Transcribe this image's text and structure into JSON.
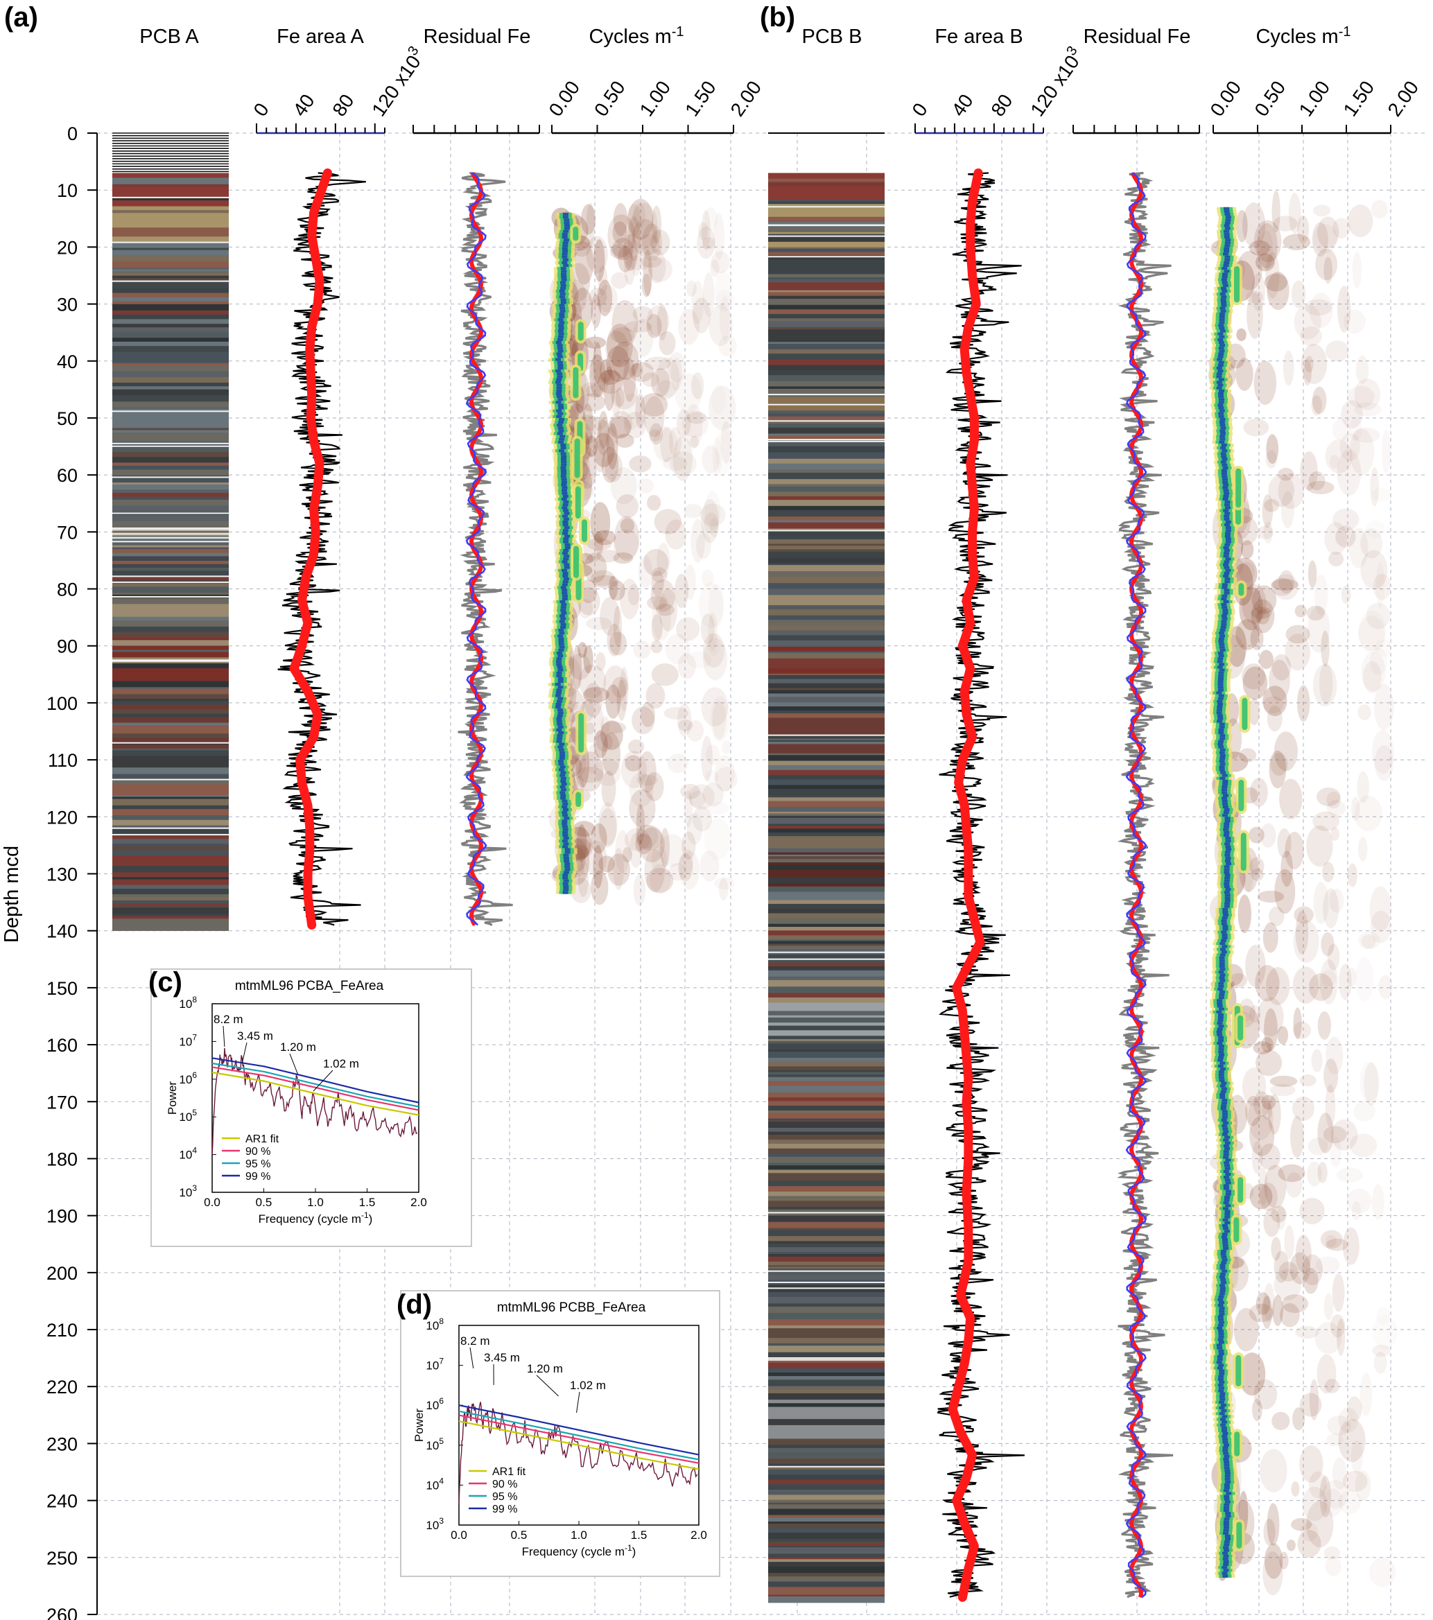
{
  "figure": {
    "panel_letters": {
      "a": "(a)",
      "b": "(b)",
      "c": "(c)",
      "d": "(d)"
    },
    "depth_axis_label": "Depth mcd"
  },
  "headers": {
    "pcb_a": "PCB A",
    "fe_area_a": "Fe area A",
    "residual_a": "Residual Fe",
    "cycles_a": "Cycles m",
    "pcb_b": "PCB B",
    "fe_area_b": "Fe area B",
    "residual_b": "Residual Fe",
    "cycles_b": "Cycles m",
    "cycles_sup": "-1"
  },
  "colors": {
    "raw_fe": "#000000",
    "residual_fe": "#7f7f7f",
    "smooth_trend": "#ff1a1a",
    "filtered_residual": "#3c3cff",
    "grid": "#9aa0b4",
    "ar1": "#c8c800",
    "ci90": "#e8336e",
    "ci95": "#1aa6b4",
    "ci99": "#1a2aa6",
    "spectrum": "#6b1a3c"
  },
  "chart_data": [
    {
      "id": "core_logs",
      "type": "line",
      "depth_axis": {
        "label": "Depth mcd",
        "range": [
          0,
          260
        ],
        "ticks": [
          0,
          10,
          20,
          30,
          40,
          50,
          60,
          70,
          80,
          90,
          100,
          110,
          120,
          130,
          140,
          150,
          160,
          170,
          180,
          190,
          200,
          210,
          220,
          230,
          240,
          250,
          260
        ]
      },
      "fe_area_axis": {
        "ticks": [
          "0",
          "40",
          "80",
          "120 x10"
        ],
        "exponent": "3",
        "range": [
          0,
          130
        ]
      },
      "cycles_axis": {
        "ticks": [
          "0.00",
          "0.50",
          "1.00",
          "1.50",
          "2.00"
        ],
        "range": [
          0,
          2
        ]
      },
      "grid": true,
      "pcb_a": {
        "depth_range": [
          0,
          139
        ]
      },
      "pcb_b": {
        "depth_range": [
          7,
          257
        ]
      },
      "fe_area_a": {
        "depth_range": [
          7,
          139
        ],
        "trend": [
          [
            7,
            72
          ],
          [
            10,
            66
          ],
          [
            14,
            58
          ],
          [
            18,
            56
          ],
          [
            22,
            60
          ],
          [
            26,
            64
          ],
          [
            30,
            62
          ],
          [
            34,
            56
          ],
          [
            38,
            54
          ],
          [
            42,
            55
          ],
          [
            46,
            56
          ],
          [
            50,
            55
          ],
          [
            54,
            58
          ],
          [
            58,
            64
          ],
          [
            62,
            62
          ],
          [
            66,
            58
          ],
          [
            70,
            60
          ],
          [
            74,
            58
          ],
          [
            78,
            50
          ],
          [
            82,
            46
          ],
          [
            86,
            52
          ],
          [
            90,
            46
          ],
          [
            94,
            38
          ],
          [
            98,
            52
          ],
          [
            102,
            62
          ],
          [
            106,
            58
          ],
          [
            110,
            44
          ],
          [
            114,
            46
          ],
          [
            118,
            52
          ],
          [
            122,
            54
          ],
          [
            126,
            54
          ],
          [
            130,
            52
          ],
          [
            134,
            52
          ],
          [
            139,
            56
          ]
        ]
      },
      "fe_area_b": {
        "depth_range": [
          7,
          257
        ],
        "trend": [
          [
            7,
            64
          ],
          [
            12,
            58
          ],
          [
            16,
            56
          ],
          [
            20,
            56
          ],
          [
            25,
            58
          ],
          [
            30,
            62
          ],
          [
            34,
            54
          ],
          [
            38,
            50
          ],
          [
            42,
            52
          ],
          [
            46,
            56
          ],
          [
            50,
            60
          ],
          [
            54,
            60
          ],
          [
            58,
            56
          ],
          [
            62,
            58
          ],
          [
            66,
            60
          ],
          [
            70,
            58
          ],
          [
            74,
            58
          ],
          [
            78,
            60
          ],
          [
            82,
            52
          ],
          [
            86,
            56
          ],
          [
            90,
            48
          ],
          [
            94,
            56
          ],
          [
            98,
            50
          ],
          [
            102,
            52
          ],
          [
            106,
            58
          ],
          [
            110,
            48
          ],
          [
            114,
            44
          ],
          [
            118,
            50
          ],
          [
            122,
            52
          ],
          [
            126,
            54
          ],
          [
            130,
            54
          ],
          [
            134,
            54
          ],
          [
            138,
            60
          ],
          [
            142,
            66
          ],
          [
            146,
            54
          ],
          [
            150,
            42
          ],
          [
            154,
            48
          ],
          [
            158,
            50
          ],
          [
            162,
            52
          ],
          [
            166,
            54
          ],
          [
            170,
            52
          ],
          [
            175,
            54
          ],
          [
            180,
            54
          ],
          [
            186,
            52
          ],
          [
            192,
            54
          ],
          [
            198,
            54
          ],
          [
            204,
            46
          ],
          [
            208,
            56
          ],
          [
            212,
            54
          ],
          [
            216,
            50
          ],
          [
            220,
            44
          ],
          [
            224,
            38
          ],
          [
            228,
            46
          ],
          [
            232,
            58
          ],
          [
            236,
            52
          ],
          [
            240,
            42
          ],
          [
            244,
            50
          ],
          [
            248,
            60
          ],
          [
            252,
            54
          ],
          [
            257,
            48
          ]
        ]
      },
      "wavelet_a": {
        "depth_range": [
          14,
          133
        ],
        "frequency_range": [
          0,
          2
        ]
      },
      "wavelet_b": {
        "depth_range": [
          13,
          253
        ],
        "frequency_range": [
          0,
          2
        ]
      }
    },
    {
      "id": "spectrum_a",
      "type": "line",
      "title": "mtmML96 PCBA_FeArea",
      "xlabel": "Frequency (cycle m",
      "xlabel_sup": "-1",
      "xlabel_end": ")",
      "ylabel": "Power",
      "xlim": [
        0,
        2
      ],
      "ylim_log10": [
        3,
        8
      ],
      "x_ticks": [
        "0.0",
        "0.5",
        "1.0",
        "1.5",
        "2.0"
      ],
      "y_ticks": [
        "3",
        "4",
        "5",
        "6",
        "7",
        "8"
      ],
      "y_tick_base": "10",
      "legend": [
        "AR1 fit",
        "90 %",
        "95 %",
        "99 %"
      ],
      "legend_position": "bottom-left",
      "annotations": [
        {
          "text": "8.2 m",
          "freq": 0.12
        },
        {
          "text": "3.45 m",
          "freq": 0.29
        },
        {
          "text": "1.20 m",
          "freq": 0.83
        },
        {
          "text": "1.02 m",
          "freq": 0.98
        }
      ],
      "series": [
        {
          "name": "AR1 fit",
          "log10": [
            [
              0,
              6.18
            ],
            [
              0.5,
              5.95
            ],
            [
              1.0,
              5.62
            ],
            [
              1.5,
              5.3
            ],
            [
              2.0,
              5.05
            ]
          ]
        },
        {
          "name": "90 %",
          "log10": [
            [
              0,
              6.32
            ],
            [
              0.5,
              6.1
            ],
            [
              1.0,
              5.78
            ],
            [
              1.5,
              5.45
            ],
            [
              2.0,
              5.18
            ]
          ]
        },
        {
          "name": "95 %",
          "log10": [
            [
              0,
              6.42
            ],
            [
              0.5,
              6.2
            ],
            [
              1.0,
              5.87
            ],
            [
              1.5,
              5.54
            ],
            [
              2.0,
              5.27
            ]
          ]
        },
        {
          "name": "99 %",
          "log10": [
            [
              0,
              6.56
            ],
            [
              0.5,
              6.34
            ],
            [
              1.0,
              6.01
            ],
            [
              1.5,
              5.67
            ],
            [
              2.0,
              5.38
            ]
          ]
        }
      ],
      "spectrum_log10": [
        [
          0.0,
          4.0
        ],
        [
          0.02,
          5.2
        ],
        [
          0.04,
          6.0
        ],
        [
          0.06,
          6.3
        ],
        [
          0.08,
          6.55
        ],
        [
          0.1,
          6.3
        ],
        [
          0.12,
          6.7
        ],
        [
          0.15,
          6.4
        ],
        [
          0.18,
          6.6
        ],
        [
          0.2,
          6.2
        ],
        [
          0.23,
          6.55
        ],
        [
          0.26,
          6.1
        ],
        [
          0.29,
          6.6
        ],
        [
          0.32,
          5.9
        ],
        [
          0.35,
          6.2
        ],
        [
          0.4,
          5.7
        ],
        [
          0.45,
          6.0
        ],
        [
          0.5,
          5.5
        ],
        [
          0.55,
          5.9
        ],
        [
          0.6,
          5.3
        ],
        [
          0.65,
          5.8
        ],
        [
          0.7,
          5.2
        ],
        [
          0.75,
          5.5
        ],
        [
          0.8,
          5.9
        ],
        [
          0.83,
          6.0
        ],
        [
          0.87,
          5.1
        ],
        [
          0.9,
          5.6
        ],
        [
          0.95,
          5.2
        ],
        [
          0.98,
          5.7
        ],
        [
          1.02,
          4.9
        ],
        [
          1.08,
          5.4
        ],
        [
          1.12,
          4.8
        ],
        [
          1.18,
          5.3
        ],
        [
          1.22,
          5.5
        ],
        [
          1.28,
          4.9
        ],
        [
          1.34,
          5.2
        ],
        [
          1.4,
          4.7
        ],
        [
          1.45,
          5.1
        ],
        [
          1.5,
          4.8
        ],
        [
          1.56,
          5.1
        ],
        [
          1.6,
          4.6
        ],
        [
          1.66,
          5.0
        ],
        [
          1.72,
          4.7
        ],
        [
          1.78,
          4.9
        ],
        [
          1.84,
          4.5
        ],
        [
          1.9,
          4.9
        ],
        [
          1.95,
          4.6
        ],
        [
          2.0,
          4.7
        ]
      ]
    },
    {
      "id": "spectrum_b",
      "type": "line",
      "title": "mtmML96 PCBB_FeArea",
      "xlabel": "Frequency (cycle m",
      "xlabel_sup": "-1",
      "xlabel_end": ")",
      "ylabel": "Power",
      "xlim": [
        0,
        2
      ],
      "ylim_log10": [
        3,
        8
      ],
      "x_ticks": [
        "0.0",
        "0.5",
        "1.0",
        "1.5",
        "2.0"
      ],
      "y_ticks": [
        "3",
        "4",
        "5",
        "6",
        "7",
        "8"
      ],
      "y_tick_base": "10",
      "legend": [
        "AR1 fit",
        "90 %",
        "95 %",
        "99 %"
      ],
      "legend_position": "bottom-left",
      "annotations": [
        {
          "text": "8.2 m",
          "freq": 0.12
        },
        {
          "text": "3.45 m",
          "freq": 0.29
        },
        {
          "text": "1.20 m",
          "freq": 0.83
        },
        {
          "text": "1.02 m",
          "freq": 0.98
        }
      ],
      "series": [
        {
          "name": "AR1 fit",
          "log10": [
            [
              0,
              5.6
            ],
            [
              0.5,
              5.3
            ],
            [
              1.0,
              5.0
            ],
            [
              1.5,
              4.68
            ],
            [
              2.0,
              4.4
            ]
          ]
        },
        {
          "name": "90 %",
          "log10": [
            [
              0,
              5.75
            ],
            [
              0.5,
              5.45
            ],
            [
              1.0,
              5.15
            ],
            [
              1.5,
              4.83
            ],
            [
              2.0,
              4.55
            ]
          ]
        },
        {
          "name": "95 %",
          "log10": [
            [
              0,
              5.85
            ],
            [
              0.5,
              5.55
            ],
            [
              1.0,
              5.24
            ],
            [
              1.5,
              4.92
            ],
            [
              2.0,
              4.64
            ]
          ]
        },
        {
          "name": "99 %",
          "log10": [
            [
              0,
              6.0
            ],
            [
              0.5,
              5.7
            ],
            [
              1.0,
              5.38
            ],
            [
              1.5,
              5.06
            ],
            [
              2.0,
              4.76
            ]
          ]
        }
      ],
      "spectrum_log10": [
        [
          0.0,
          3.6
        ],
        [
          0.02,
          4.8
        ],
        [
          0.04,
          5.8
        ],
        [
          0.06,
          5.6
        ],
        [
          0.08,
          6.0
        ],
        [
          0.1,
          5.7
        ],
        [
          0.12,
          6.15
        ],
        [
          0.15,
          5.6
        ],
        [
          0.18,
          6.0
        ],
        [
          0.2,
          5.5
        ],
        [
          0.23,
          5.9
        ],
        [
          0.26,
          5.4
        ],
        [
          0.29,
          6.0
        ],
        [
          0.32,
          5.3
        ],
        [
          0.36,
          5.7
        ],
        [
          0.4,
          5.1
        ],
        [
          0.45,
          5.6
        ],
        [
          0.5,
          5.0
        ],
        [
          0.55,
          5.5
        ],
        [
          0.6,
          4.9
        ],
        [
          0.65,
          5.4
        ],
        [
          0.7,
          4.8
        ],
        [
          0.75,
          5.2
        ],
        [
          0.8,
          5.35
        ],
        [
          0.83,
          5.4
        ],
        [
          0.88,
          4.7
        ],
        [
          0.92,
          5.1
        ],
        [
          0.98,
          5.2
        ],
        [
          1.02,
          4.5
        ],
        [
          1.08,
          5.0
        ],
        [
          1.12,
          4.4
        ],
        [
          1.18,
          4.9
        ],
        [
          1.24,
          5.0
        ],
        [
          1.3,
          4.4
        ],
        [
          1.36,
          4.8
        ],
        [
          1.42,
          4.3
        ],
        [
          1.48,
          4.7
        ],
        [
          1.54,
          4.3
        ],
        [
          1.6,
          4.6
        ],
        [
          1.66,
          4.2
        ],
        [
          1.72,
          4.5
        ],
        [
          1.78,
          4.1
        ],
        [
          1.84,
          4.4
        ],
        [
          1.9,
          4.0
        ],
        [
          1.95,
          4.3
        ],
        [
          2.0,
          4.2
        ]
      ]
    }
  ]
}
